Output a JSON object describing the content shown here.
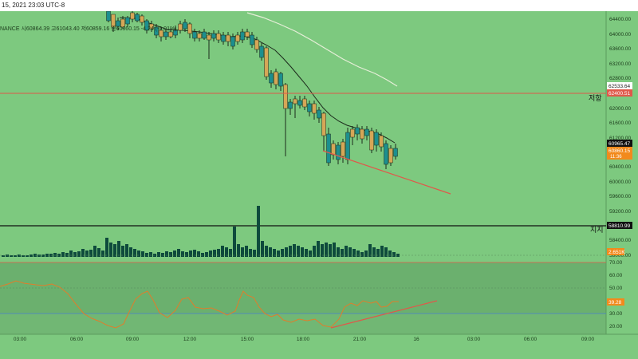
{
  "header": {
    "datetime": "15, 2021 23:03 UTC-8",
    "ohlc_line": "NANCE  시60864.39  고61043.40  저60859.16  종60860.15  -4.24 (-0.01%)"
  },
  "price_axis": {
    "ticks": [
      "64400.00",
      "64000.00",
      "63600.00",
      "63200.00",
      "62800.00",
      "62000.00",
      "61600.00",
      "61200.00",
      "60400.00",
      "60000.00",
      "59600.00",
      "59200.00",
      "58400.00",
      "58000.00"
    ]
  },
  "price_tags": {
    "ma_slow": "62533.64",
    "resistance_price": "62400.51",
    "ma_fast": "60965.47",
    "last_price": "60860.15",
    "countdown": "11:36",
    "support_price": "58810.99"
  },
  "annotations": {
    "resistance_label": "저항",
    "support_label": "지지"
  },
  "volume": {
    "value_tag": "2.651K"
  },
  "rsi": {
    "ticks": [
      "70.00",
      "60.00",
      "50.00",
      "40.00",
      "30.00",
      "20.00"
    ],
    "value_tag": "39.28"
  },
  "time_axis": {
    "labels": [
      "03:00",
      "06:00",
      "09:00",
      "12:00",
      "15:00",
      "18:00",
      "21:00",
      "16",
      "03:00",
      "06:00",
      "09:00"
    ]
  },
  "colors": {
    "background": "#7dc97f",
    "bull_candle": "#1c8f8f",
    "bear_candle": "#d6a657",
    "resistance_line": "#e0584a",
    "support_line": "#111111",
    "ma_fast": "#1c2a1c",
    "ma_slow": "#e6eed8",
    "volume_bar": "#0e4a3c",
    "rsi_line": "#e07d2b",
    "trend_line": "#e0584a"
  }
}
